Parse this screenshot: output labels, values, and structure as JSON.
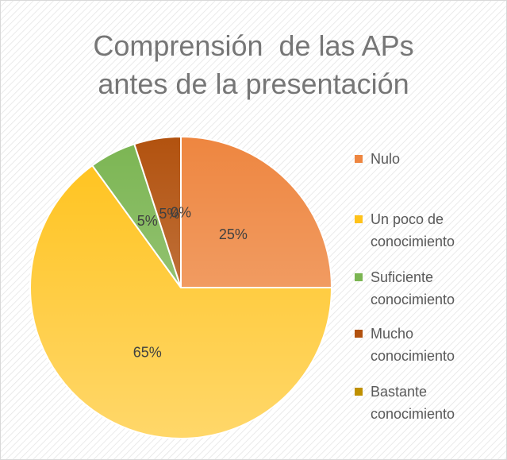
{
  "chart_data": {
    "type": "pie",
    "title": "Comprensión  de las APs antes de la presentación",
    "categories": [
      "Nulo",
      "Un poco de conocimiento",
      "Suficiente conocimiento",
      "Mucho conocimiento",
      "Bastante conocimiento"
    ],
    "values": [
      25,
      65,
      5,
      5,
      0
    ],
    "value_labels": [
      "25%",
      "65%",
      "5%",
      "5%",
      "0%"
    ],
    "colors": [
      "#ee8640",
      "#ffc21a",
      "#7bb552",
      "#b2520f",
      "#bf9000"
    ],
    "legend": "right"
  }
}
